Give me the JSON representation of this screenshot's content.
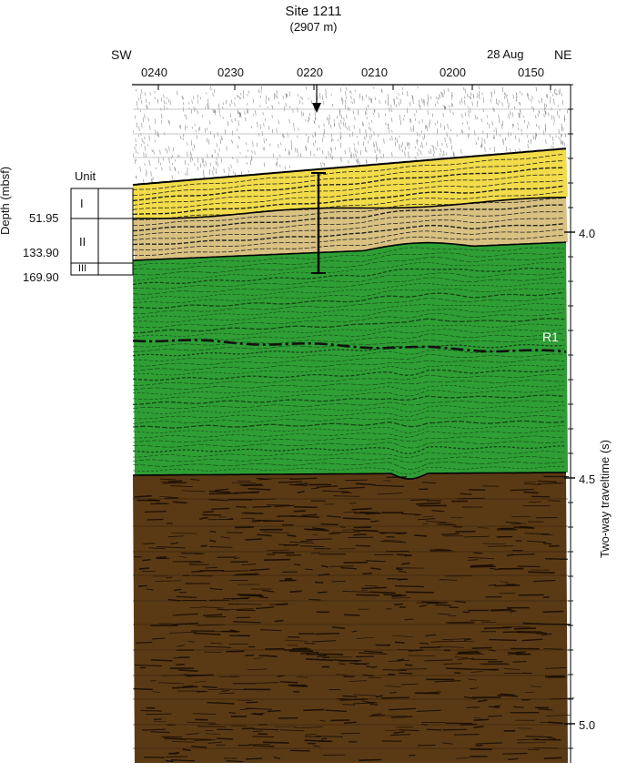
{
  "header": {
    "title": "Site 1211",
    "subtitle": "(2907 m)",
    "direction_left": "SW",
    "direction_right": "NE",
    "date": "28 Aug"
  },
  "time_ticks": [
    "0240",
    "0230",
    "0220",
    "0210",
    "0200",
    "0150"
  ],
  "depth_axis": {
    "label": "Depth (mbsf)",
    "values": [
      "51.95",
      "133.90",
      "169.90"
    ]
  },
  "units": {
    "heading": "Unit",
    "items": [
      "I",
      "II",
      "III"
    ]
  },
  "twt_axis": {
    "label": "Two-way traveltime (s)",
    "values": [
      "4.0",
      "4.5",
      "5.0"
    ]
  },
  "reflector": "R1",
  "colors": {
    "unit_I": "#f2dc4a",
    "unit_II": "#d9c182",
    "unit_III_green": "#2e9e35",
    "basement": "#5a3a15",
    "water_noise": "#888888"
  }
}
